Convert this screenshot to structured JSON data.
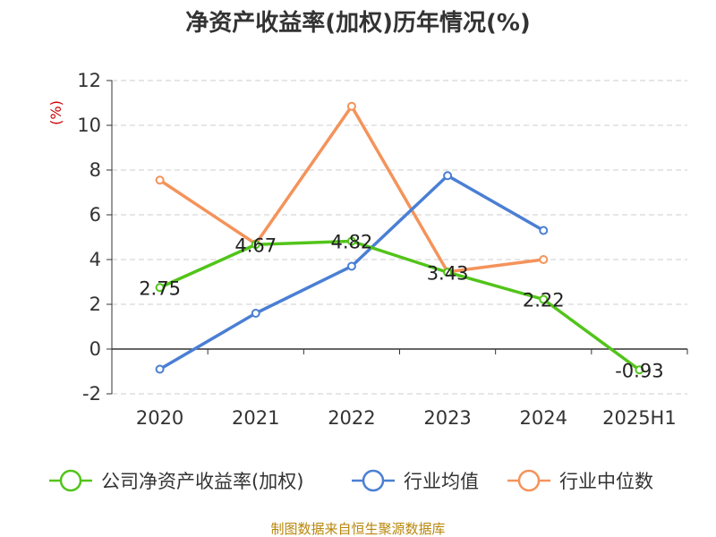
{
  "chart_data": {
    "type": "line",
    "title": "净资产收益率(加权)历年情况(%)",
    "ylabel": "(%)",
    "xlabel": "",
    "categories": [
      "2020",
      "2021",
      "2022",
      "2023",
      "2024",
      "2025H1"
    ],
    "ylim": [
      -2,
      12
    ],
    "yticks": [
      -2,
      0,
      2,
      4,
      6,
      8,
      10,
      12
    ],
    "grid": true,
    "legend_position": "bottom",
    "series": [
      {
        "name": "公司净资产收益率(加权)",
        "color": "#52c41a",
        "values": [
          2.75,
          4.67,
          4.82,
          3.43,
          2.22,
          -0.93
        ],
        "labels": [
          "2.75",
          "4.67",
          "4.82",
          "3.43",
          "2.22",
          "-0.93"
        ]
      },
      {
        "name": "行业均值",
        "color": "#4a7fd4",
        "values": [
          -0.9,
          1.6,
          3.7,
          7.75,
          5.3,
          null
        ]
      },
      {
        "name": "行业中位数",
        "color": "#f4935a",
        "values": [
          7.55,
          4.7,
          10.85,
          3.45,
          4.0,
          null
        ]
      }
    ]
  },
  "footer": {
    "source": "制图数据来自恒生聚源数据库"
  }
}
